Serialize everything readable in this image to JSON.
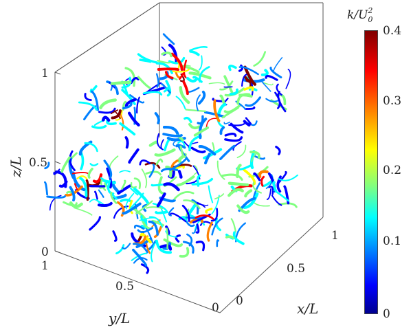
{
  "figure": {
    "z_axis": {
      "label": "z/L",
      "ticks": [
        "0",
        "0.5",
        "1"
      ]
    },
    "y_axis": {
      "label": "y/L",
      "ticks": [
        "1",
        "0.5",
        "0"
      ]
    },
    "x_axis": {
      "label": "x/L",
      "ticks": [
        "0",
        "0.5",
        "1"
      ]
    },
    "colorbar": {
      "label_k": "k/U",
      "label_sub": "0",
      "label_sup": "2",
      "ticks": [
        "0.4",
        "0.3",
        "0.2",
        "0.1",
        "0"
      ],
      "colormap": [
        "#00008f",
        "#0000ff",
        "#0080ff",
        "#00ffff",
        "#80ff80",
        "#ffff00",
        "#ff8000",
        "#ff0000",
        "#800000"
      ]
    }
  }
}
